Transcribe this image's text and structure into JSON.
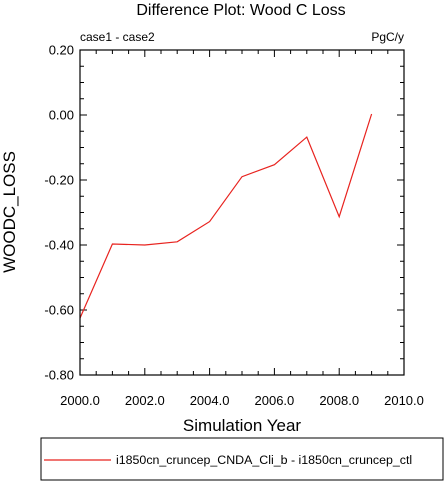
{
  "chart_data": {
    "type": "line",
    "title": "Difference Plot: Wood C Loss",
    "left_subtitle": "case1 - case2",
    "right_subtitle": "PgC/y",
    "xlabel": "Simulation Year",
    "ylabel": "WOODC_LOSS",
    "xlim": [
      2000,
      2010
    ],
    "ylim": [
      -0.8,
      0.2
    ],
    "x_ticks": [
      2000,
      2002,
      2004,
      2006,
      2008,
      2010
    ],
    "x_tick_labels": [
      "2000.0",
      "2002.0",
      "2004.0",
      "2006.0",
      "2008.0",
      "2010.0"
    ],
    "y_ticks": [
      0.2,
      0.0,
      -0.2,
      -0.4,
      -0.6,
      -0.8
    ],
    "y_tick_labels": [
      "0.20",
      "0.00",
      "-0.20",
      "-0.40",
      "-0.60",
      "-0.80"
    ],
    "grid": false,
    "legend_position": "bottom",
    "series": [
      {
        "name": "i1850cn_cruncep_CNDA_Cli_b - i1850cn_cruncep_ctl",
        "color": "#e8231f",
        "x": [
          2000,
          2001,
          2002,
          2003,
          2004,
          2005,
          2006,
          2007,
          2008,
          2009
        ],
        "y": [
          -0.625,
          -0.397,
          -0.4,
          -0.39,
          -0.328,
          -0.19,
          -0.153,
          -0.068,
          -0.313,
          0.003
        ]
      }
    ]
  }
}
